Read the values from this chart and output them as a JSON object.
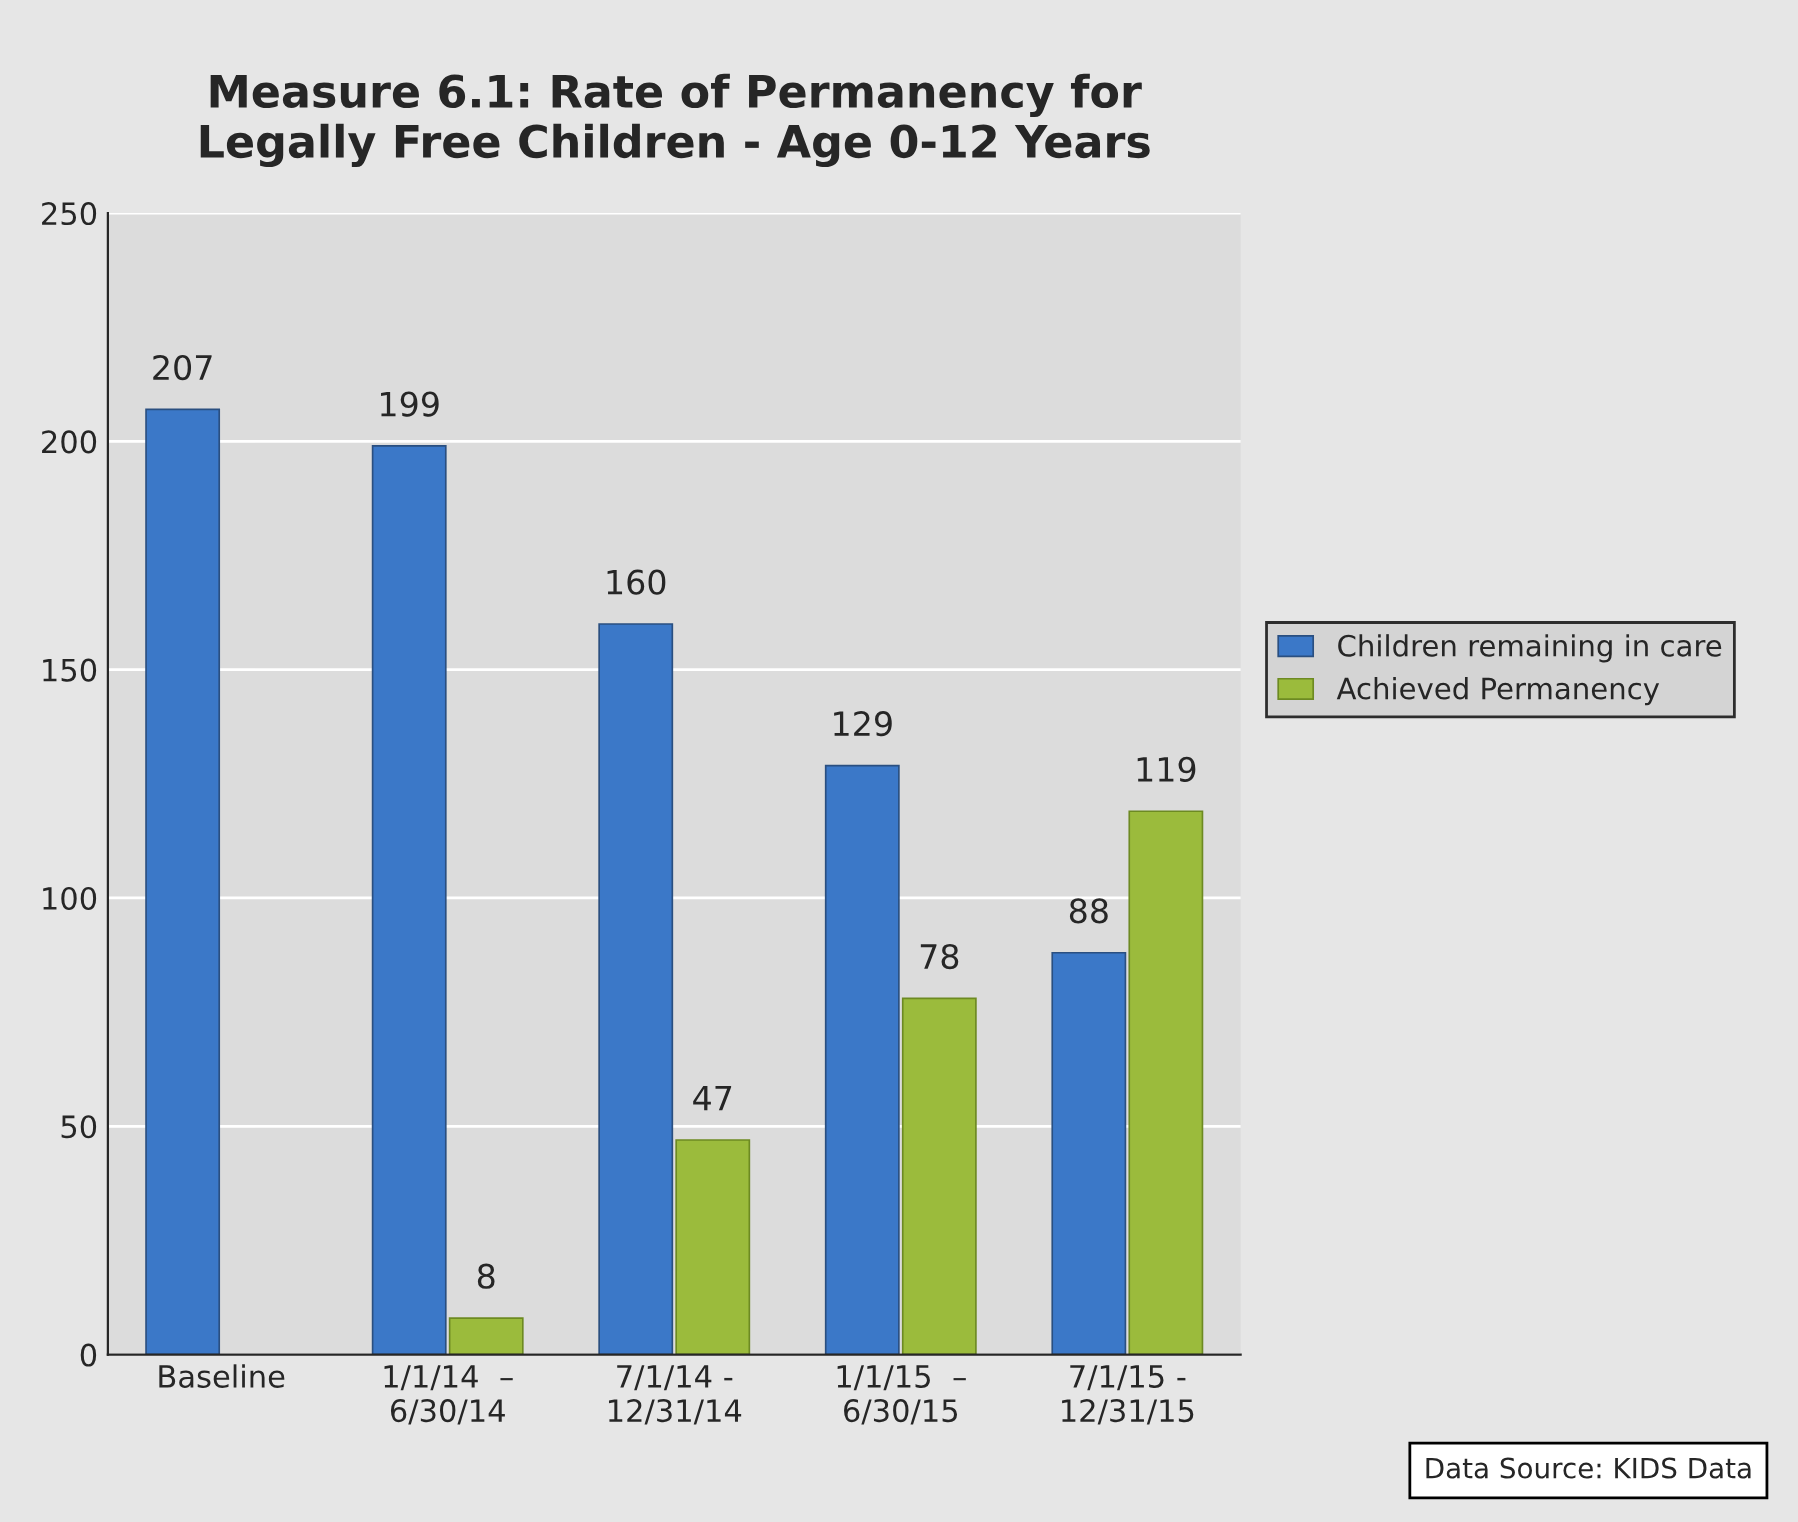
{
  "chart_data": {
    "type": "bar",
    "title": "Measure 6.1: Rate of Permanency for\nLegally Free Children - Age 0-12 Years",
    "categories": [
      "Baseline",
      "1/1/14  –\n6/30/14",
      "7/1/14 -\n12/31/14",
      "1/1/15  –\n6/30/15",
      "7/1/15 -\n12/31/15"
    ],
    "series": [
      {
        "name": "Children remaining in care",
        "color": "#3b78c8",
        "values": [
          207,
          199,
          160,
          129,
          88
        ]
      },
      {
        "name": "Achieved Permanency",
        "color": "#9bbb3c",
        "values": [
          null,
          8,
          47,
          78,
          119
        ]
      }
    ],
    "ylim": [
      0,
      250
    ],
    "yticks": [
      0,
      50,
      100,
      150,
      200,
      250
    ],
    "grid": "y",
    "legend": "right",
    "data_labels": true,
    "annotations": [
      "Data Source: KIDS Data"
    ]
  }
}
